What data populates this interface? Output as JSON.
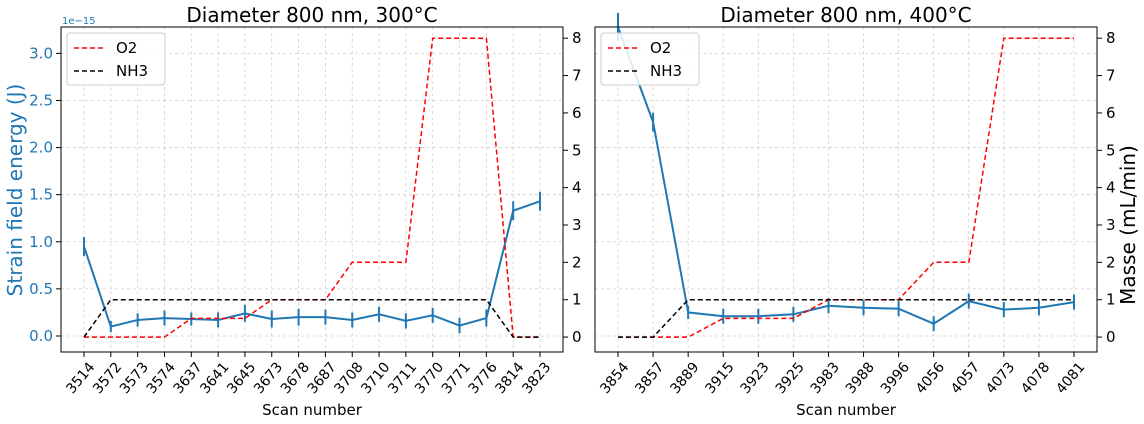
{
  "colors": {
    "strain": "#1f77b4",
    "o2": "#ff0000",
    "nh3": "#000000"
  },
  "chart_data": [
    {
      "type": "line",
      "title": "Diameter 800 nm, 300°C",
      "xlabel": "Scan number",
      "ylabel": "Strain field energy (J)",
      "y_offset_label": "1e−15",
      "y_scale_exponent": -15,
      "ylim": [
        -0.17,
        3.28
      ],
      "yticks": [
        "0.0",
        "0.5",
        "1.0",
        "1.5",
        "2.0",
        "2.5",
        "3.0"
      ],
      "y2lim": [
        -0.4,
        8.3
      ],
      "y2ticks": [
        "0",
        "1",
        "2",
        "3",
        "4",
        "5",
        "6",
        "7",
        "8"
      ],
      "grid": true,
      "legend_position": "top-left",
      "categories": [
        "3514",
        "3572",
        "3573",
        "3574",
        "3637",
        "3641",
        "3645",
        "3673",
        "3678",
        "3687",
        "3708",
        "3710",
        "3711",
        "3770",
        "3771",
        "3776",
        "3814",
        "3823"
      ],
      "series": [
        {
          "axis": "left",
          "errorbars": true,
          "values": [
            0.95,
            0.1,
            0.17,
            0.19,
            0.18,
            0.17,
            0.24,
            0.18,
            0.2,
            0.2,
            0.17,
            0.23,
            0.16,
            0.22,
            0.11,
            0.19,
            1.33,
            1.43
          ],
          "errors": [
            0.1,
            0.06,
            0.07,
            0.08,
            0.07,
            0.08,
            0.09,
            0.09,
            0.09,
            0.08,
            0.08,
            0.08,
            0.08,
            0.08,
            0.08,
            0.09,
            0.1,
            0.1
          ]
        },
        {
          "name": "O2",
          "axis": "right",
          "style": "dashed",
          "values": [
            0,
            0,
            0,
            0,
            0.5,
            0.5,
            0.5,
            1,
            1,
            1,
            2,
            2,
            2,
            8,
            8,
            8,
            0,
            0
          ]
        },
        {
          "name": "NH3",
          "axis": "right",
          "style": "dashed",
          "values": [
            0,
            1,
            1,
            1,
            1,
            1,
            1,
            1,
            1,
            1,
            1,
            1,
            1,
            1,
            1,
            1,
            0,
            0
          ]
        }
      ]
    },
    {
      "type": "line",
      "title": "Diameter 800 nm, 400°C",
      "xlabel": "Scan number",
      "ylabel": "Masse (mL/min)",
      "ylim": [
        -0.17,
        3.28
      ],
      "y2lim": [
        -0.4,
        8.3
      ],
      "y2ticks": [
        "0",
        "1",
        "2",
        "3",
        "4",
        "5",
        "6",
        "7",
        "8"
      ],
      "grid": true,
      "legend_position": "top-left",
      "categories": [
        "3854",
        "3857",
        "3889",
        "3915",
        "3923",
        "3925",
        "3983",
        "3988",
        "3996",
        "4056",
        "4057",
        "4073",
        "4078",
        "4081"
      ],
      "series": [
        {
          "axis": "left",
          "errorbars": true,
          "values": [
            3.28,
            2.27,
            0.25,
            0.21,
            0.21,
            0.23,
            0.32,
            0.3,
            0.29,
            0.13,
            0.37,
            0.28,
            0.3,
            0.36
          ],
          "errors": [
            0.15,
            0.1,
            0.07,
            0.08,
            0.08,
            0.08,
            0.08,
            0.08,
            0.08,
            0.08,
            0.08,
            0.08,
            0.08,
            0.08
          ]
        },
        {
          "name": "O2",
          "axis": "right",
          "style": "dashed",
          "values": [
            0,
            0,
            0,
            0.5,
            0.5,
            0.5,
            1,
            1,
            1,
            2,
            2,
            8,
            8,
            8
          ]
        },
        {
          "name": "NH3",
          "axis": "right",
          "style": "dashed",
          "values": [
            0,
            0,
            1,
            1,
            1,
            1,
            1,
            1,
            1,
            1,
            1,
            1,
            1,
            1
          ]
        }
      ]
    }
  ]
}
